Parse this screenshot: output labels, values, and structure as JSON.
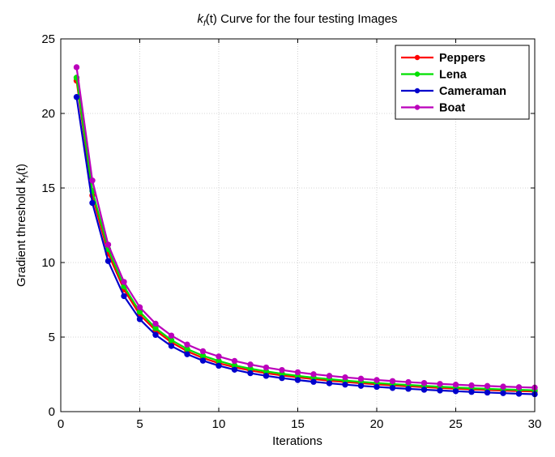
{
  "chart_data": {
    "type": "line",
    "title_prefix": "k",
    "title_sub": "f",
    "title_suffix": "(t)  Curve for the four testing Images",
    "xlabel": "Iterations",
    "ylabel_prefix": "Gradient threshold  k",
    "ylabel_sub": "f",
    "ylabel_suffix": "(t)",
    "xlim": [
      0,
      30
    ],
    "ylim": [
      0,
      25
    ],
    "xticks": [
      0,
      5,
      10,
      15,
      20,
      25,
      30
    ],
    "yticks": [
      0,
      5,
      10,
      15,
      20,
      25
    ],
    "grid": true,
    "legend_position": "top-right",
    "x": [
      1,
      2,
      3,
      4,
      5,
      6,
      7,
      8,
      9,
      10,
      11,
      12,
      13,
      14,
      15,
      16,
      17,
      18,
      19,
      20,
      21,
      22,
      23,
      24,
      25,
      26,
      27,
      28,
      29,
      30
    ],
    "series": [
      {
        "name": "Peppers",
        "color": "#ff0000",
        "values": [
          22.2,
          14.5,
          10.6,
          8.2,
          6.5,
          5.45,
          4.65,
          4.05,
          3.6,
          3.25,
          2.98,
          2.76,
          2.58,
          2.43,
          2.3,
          2.18,
          2.08,
          1.99,
          1.91,
          1.83,
          1.76,
          1.7,
          1.64,
          1.59,
          1.54,
          1.49,
          1.45,
          1.41,
          1.38,
          1.35
        ]
      },
      {
        "name": "Lena",
        "color": "#00e000",
        "values": [
          22.4,
          14.8,
          10.9,
          8.4,
          6.7,
          5.6,
          4.8,
          4.2,
          3.75,
          3.4,
          3.1,
          2.88,
          2.7,
          2.54,
          2.4,
          2.28,
          2.18,
          2.08,
          2.0,
          1.92,
          1.85,
          1.79,
          1.73,
          1.67,
          1.62,
          1.57,
          1.53,
          1.49,
          1.46,
          1.43
        ]
      },
      {
        "name": "Cameraman",
        "color": "#0000cc",
        "values": [
          21.1,
          14.0,
          10.1,
          7.75,
          6.2,
          5.15,
          4.4,
          3.85,
          3.42,
          3.08,
          2.81,
          2.58,
          2.4,
          2.25,
          2.12,
          2.0,
          1.9,
          1.81,
          1.73,
          1.66,
          1.59,
          1.53,
          1.47,
          1.42,
          1.37,
          1.32,
          1.28,
          1.24,
          1.2,
          1.17
        ]
      },
      {
        "name": "Boat",
        "color": "#bb00bb",
        "values": [
          23.1,
          15.5,
          11.2,
          8.7,
          7.0,
          5.9,
          5.1,
          4.5,
          4.05,
          3.7,
          3.4,
          3.16,
          2.96,
          2.79,
          2.64,
          2.51,
          2.4,
          2.3,
          2.21,
          2.12,
          2.05,
          1.98,
          1.92,
          1.86,
          1.81,
          1.76,
          1.72,
          1.68,
          1.64,
          1.61
        ]
      }
    ]
  }
}
